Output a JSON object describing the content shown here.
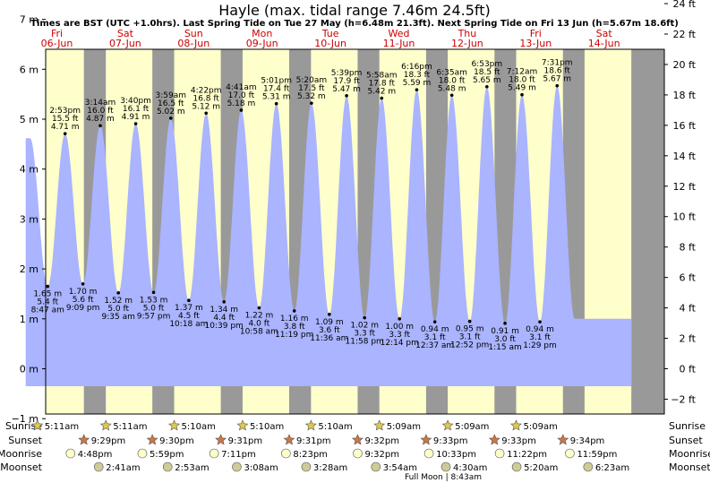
{
  "chart_data": {
    "type": "area",
    "title": "Hayle (max. tidal range 7.46m 24.5ft)",
    "subtitle": "Times are BST (UTC +1.0hrs). Last Spring Tide on Tue 27 May (h=6.48m 21.3ft). Next Spring Tide on Fri 13 Jun (h=5.67m 18.6ft)",
    "x_range_days": [
      0,
      9
    ],
    "ylim_m": [
      -1.3,
      7.5
    ],
    "left_ticks": [
      "−1 m",
      "0 m",
      "1 m",
      "2 m",
      "3 m",
      "4 m",
      "5 m",
      "6 m",
      "7 m"
    ],
    "left_tick_values": [
      -1,
      0,
      1,
      2,
      3,
      4,
      5,
      6,
      7
    ],
    "right_ticks": [
      "−2 ft",
      "0 ft",
      "2 ft",
      "4 ft",
      "6 ft",
      "8 ft",
      "10 ft",
      "12 ft",
      "14 ft",
      "16 ft",
      "18 ft",
      "20 ft",
      "22 ft",
      "24 ft"
    ],
    "right_tick_values_ft": [
      -2,
      0,
      2,
      4,
      6,
      8,
      10,
      12,
      14,
      16,
      18,
      20,
      22,
      24
    ],
    "days": [
      {
        "dow": "Fri",
        "date": "06-Jun"
      },
      {
        "dow": "Sat",
        "date": "07-Jun"
      },
      {
        "dow": "Sun",
        "date": "08-Jun"
      },
      {
        "dow": "Mon",
        "date": "09-Jun"
      },
      {
        "dow": "Tue",
        "date": "10-Jun"
      },
      {
        "dow": "Wed",
        "date": "11-Jun"
      },
      {
        "dow": "Thu",
        "date": "12-Jun"
      },
      {
        "dow": "Fri",
        "date": "13-Jun"
      },
      {
        "dow": "Sat",
        "date": "14-Jun"
      }
    ],
    "tides": [
      {
        "type": "low",
        "t": "8:47 am",
        "m": 1.65,
        "m_label": "1.65 m",
        "ft_label": "5.4 ft"
      },
      {
        "type": "high",
        "t": "2:53 pm",
        "m": 4.71,
        "m_label": "4.71 m",
        "ft_label": "15.5 ft"
      },
      {
        "type": "low",
        "t": "9:09 pm",
        "m": 1.7,
        "m_label": "1.70 m",
        "ft_label": "5.6 ft"
      },
      {
        "type": "high",
        "t": "3:14 am",
        "m": 4.87,
        "m_label": "4.87 m",
        "ft_label": "16.0 ft"
      },
      {
        "type": "low",
        "t": "9:35 am",
        "m": 1.52,
        "m_label": "1.52 m",
        "ft_label": "5.0 ft"
      },
      {
        "type": "high",
        "t": "3:40 pm",
        "m": 4.91,
        "m_label": "4.91 m",
        "ft_label": "16.1 ft"
      },
      {
        "type": "low",
        "t": "9:57 pm",
        "m": 1.53,
        "m_label": "1.53 m",
        "ft_label": "5.0 ft"
      },
      {
        "type": "high",
        "t": "3:59 am",
        "m": 5.02,
        "m_label": "5.02 m",
        "ft_label": "16.5 ft"
      },
      {
        "type": "low",
        "t": "10:18 am",
        "m": 1.37,
        "m_label": "1.37 m",
        "ft_label": "4.5 ft"
      },
      {
        "type": "high",
        "t": "4:22 pm",
        "m": 5.12,
        "m_label": "5.12 m",
        "ft_label": "16.8 ft"
      },
      {
        "type": "low",
        "t": "10:39 pm",
        "m": 1.34,
        "m_label": "1.34 m",
        "ft_label": "4.4 ft"
      },
      {
        "type": "high",
        "t": "4:41 am",
        "m": 5.18,
        "m_label": "5.18 m",
        "ft_label": "17.0 ft"
      },
      {
        "type": "low",
        "t": "10:58 am",
        "m": 1.22,
        "m_label": "1.22 m",
        "ft_label": "4.0 ft"
      },
      {
        "type": "high",
        "t": "5:01 pm",
        "m": 5.31,
        "m_label": "5.31 m",
        "ft_label": "17.4 ft"
      },
      {
        "type": "low",
        "t": "11:19 pm",
        "m": 1.16,
        "m_label": "1.16 m",
        "ft_label": "3.8 ft"
      },
      {
        "type": "high",
        "t": "5:20 am",
        "m": 5.32,
        "m_label": "5.32 m",
        "ft_label": "17.5 ft"
      },
      {
        "type": "low",
        "t": "11:36 am",
        "m": 1.09,
        "m_label": "1.09 m",
        "ft_label": "3.6 ft"
      },
      {
        "type": "high",
        "t": "5:39 pm",
        "m": 5.47,
        "m_label": "5.47 m",
        "ft_label": "17.9 ft"
      },
      {
        "type": "low",
        "t": "11:58 pm",
        "m": 1.02,
        "m_label": "1.02 m",
        "ft_label": "3.3 ft"
      },
      {
        "type": "high",
        "t": "5:58 am",
        "m": 5.42,
        "m_label": "5.42 m",
        "ft_label": "17.8 ft"
      },
      {
        "type": "low",
        "t": "12:14 pm",
        "m": 1.0,
        "m_label": "1.00 m",
        "ft_label": "3.3 ft"
      },
      {
        "type": "high",
        "t": "6:16 pm",
        "m": 5.59,
        "m_label": "5.59 m",
        "ft_label": "18.3 ft"
      },
      {
        "type": "low",
        "t": "12:37 am",
        "m": 0.94,
        "m_label": "0.94 m",
        "ft_label": "3.1 ft"
      },
      {
        "type": "high",
        "t": "6:35 am",
        "m": 5.48,
        "m_label": "5.48 m",
        "ft_label": "18.0 ft"
      },
      {
        "type": "low",
        "t": "12:52 pm",
        "m": 0.95,
        "m_label": "0.95 m",
        "ft_label": "3.1 ft"
      },
      {
        "type": "high",
        "t": "6:53 pm",
        "m": 5.65,
        "m_label": "5.65 m",
        "ft_label": "18.5 ft"
      },
      {
        "type": "low",
        "t": "1:15 am",
        "m": 0.91,
        "m_label": "0.91 m",
        "ft_label": "3.0 ft"
      },
      {
        "type": "high",
        "t": "7:12 am",
        "m": 5.49,
        "m_label": "5.49 m",
        "ft_label": "18.0 ft"
      },
      {
        "type": "low",
        "t": "1:29 pm",
        "m": 0.94,
        "m_label": "0.94 m",
        "ft_label": "3.1 ft"
      },
      {
        "type": "high",
        "t": "7:31 pm",
        "m": 5.67,
        "m_label": "5.67 m",
        "ft_label": "18.6 ft"
      }
    ],
    "row_labels": [
      "Sunrise",
      "Sunset",
      "Moonrise",
      "Moonset"
    ],
    "sunrise": [
      "5:11am",
      "5:11am",
      "5:10am",
      "5:10am",
      "5:10am",
      "5:09am",
      "5:09am",
      "5:09am"
    ],
    "sunset": [
      "9:29pm",
      "9:30pm",
      "9:31pm",
      "9:31pm",
      "9:32pm",
      "9:33pm",
      "9:33pm",
      "9:34pm"
    ],
    "moonrise": [
      "4:48pm",
      "5:59pm",
      "7:11pm",
      "8:23pm",
      "9:32pm",
      "10:33pm",
      "11:22pm",
      "11:59pm"
    ],
    "moonset": [
      "2:41am",
      "2:53am",
      "3:08am",
      "3:28am",
      "3:54am",
      "4:30am",
      "5:20am",
      "6:23am"
    ],
    "full_moon_note": "Full Moon | 8:43am",
    "colors": {
      "night": "#999999",
      "day": "#ffffcc",
      "water": "#aab4ff",
      "day_label": "#cc0000",
      "sun": "#e0c850",
      "sunset": "#cc7744",
      "moonrise": "#ffffcc",
      "moonset": "#cccc99"
    }
  }
}
